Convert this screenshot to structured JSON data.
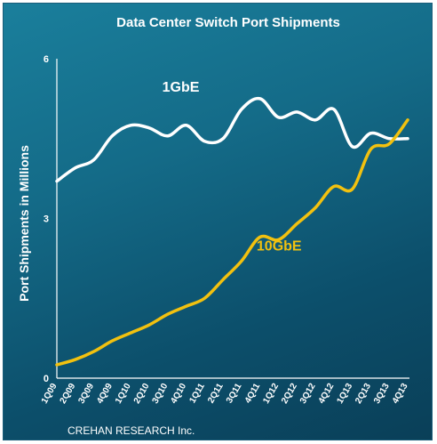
{
  "chart_data": {
    "type": "line",
    "title": "Data Center Switch Port Shipments",
    "ylabel": "Port Shipments in Millions",
    "xlabel": "",
    "ylim": [
      0,
      6
    ],
    "yticks": [
      "0",
      "3",
      "6"
    ],
    "ytick_values": [
      0,
      3,
      6
    ],
    "categories": [
      "1Q09",
      "2Q09",
      "3Q09",
      "4Q09",
      "1Q10",
      "2Q10",
      "3Q10",
      "4Q10",
      "1Q11",
      "2Q11",
      "3Q11",
      "4Q11",
      "1Q12",
      "2Q12",
      "3Q12",
      "4Q12",
      "1Q13",
      "2Q13",
      "3Q13",
      "4Q13"
    ],
    "grid": false,
    "series": [
      {
        "name": "1GbE",
        "color": "#ffffff",
        "values": [
          3.7,
          3.95,
          4.1,
          4.55,
          4.75,
          4.7,
          4.55,
          4.75,
          4.45,
          4.5,
          5.05,
          5.25,
          4.9,
          5.0,
          4.85,
          5.05,
          4.35,
          4.6,
          4.5,
          4.5
        ]
      },
      {
        "name": "10GbE",
        "color": "#f2c10f",
        "values": [
          0.25,
          0.35,
          0.5,
          0.7,
          0.85,
          1.0,
          1.2,
          1.35,
          1.5,
          1.85,
          2.2,
          2.65,
          2.6,
          2.9,
          3.2,
          3.6,
          3.55,
          4.3,
          4.4,
          4.85
        ]
      }
    ],
    "source": "CREHAN RESEARCH Inc."
  }
}
